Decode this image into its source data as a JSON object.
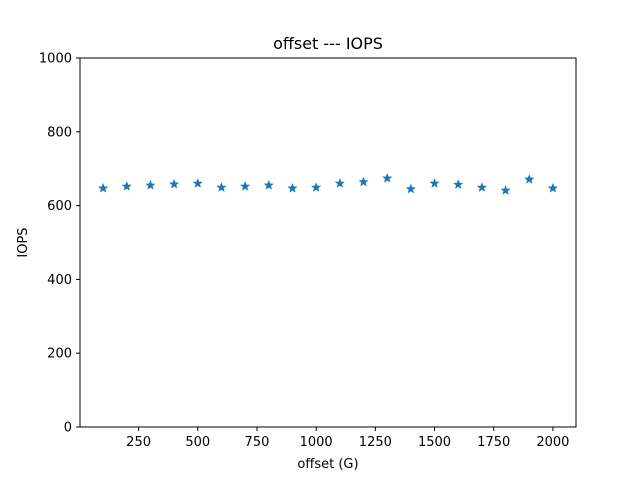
{
  "chart_data": {
    "type": "scatter",
    "title": "offset --- IOPS",
    "xlabel": "offset (G)",
    "ylabel": "IOPS",
    "xlim": [
      2.5,
      2097.5
    ],
    "ylim": [
      0,
      1000
    ],
    "xticks": [
      250,
      500,
      750,
      1000,
      1250,
      1500,
      1750,
      2000
    ],
    "yticks": [
      0,
      200,
      400,
      600,
      800,
      1000
    ],
    "marker": "star",
    "color": "#1f77b4",
    "grid": false,
    "x": [
      100,
      200,
      300,
      400,
      500,
      600,
      700,
      800,
      900,
      1000,
      1100,
      1200,
      1300,
      1400,
      1500,
      1600,
      1700,
      1800,
      1900,
      2000
    ],
    "y": [
      647,
      652,
      655,
      658,
      660,
      649,
      652,
      655,
      647,
      649,
      660,
      664,
      674,
      645,
      660,
      657,
      649,
      641,
      671,
      647
    ]
  }
}
